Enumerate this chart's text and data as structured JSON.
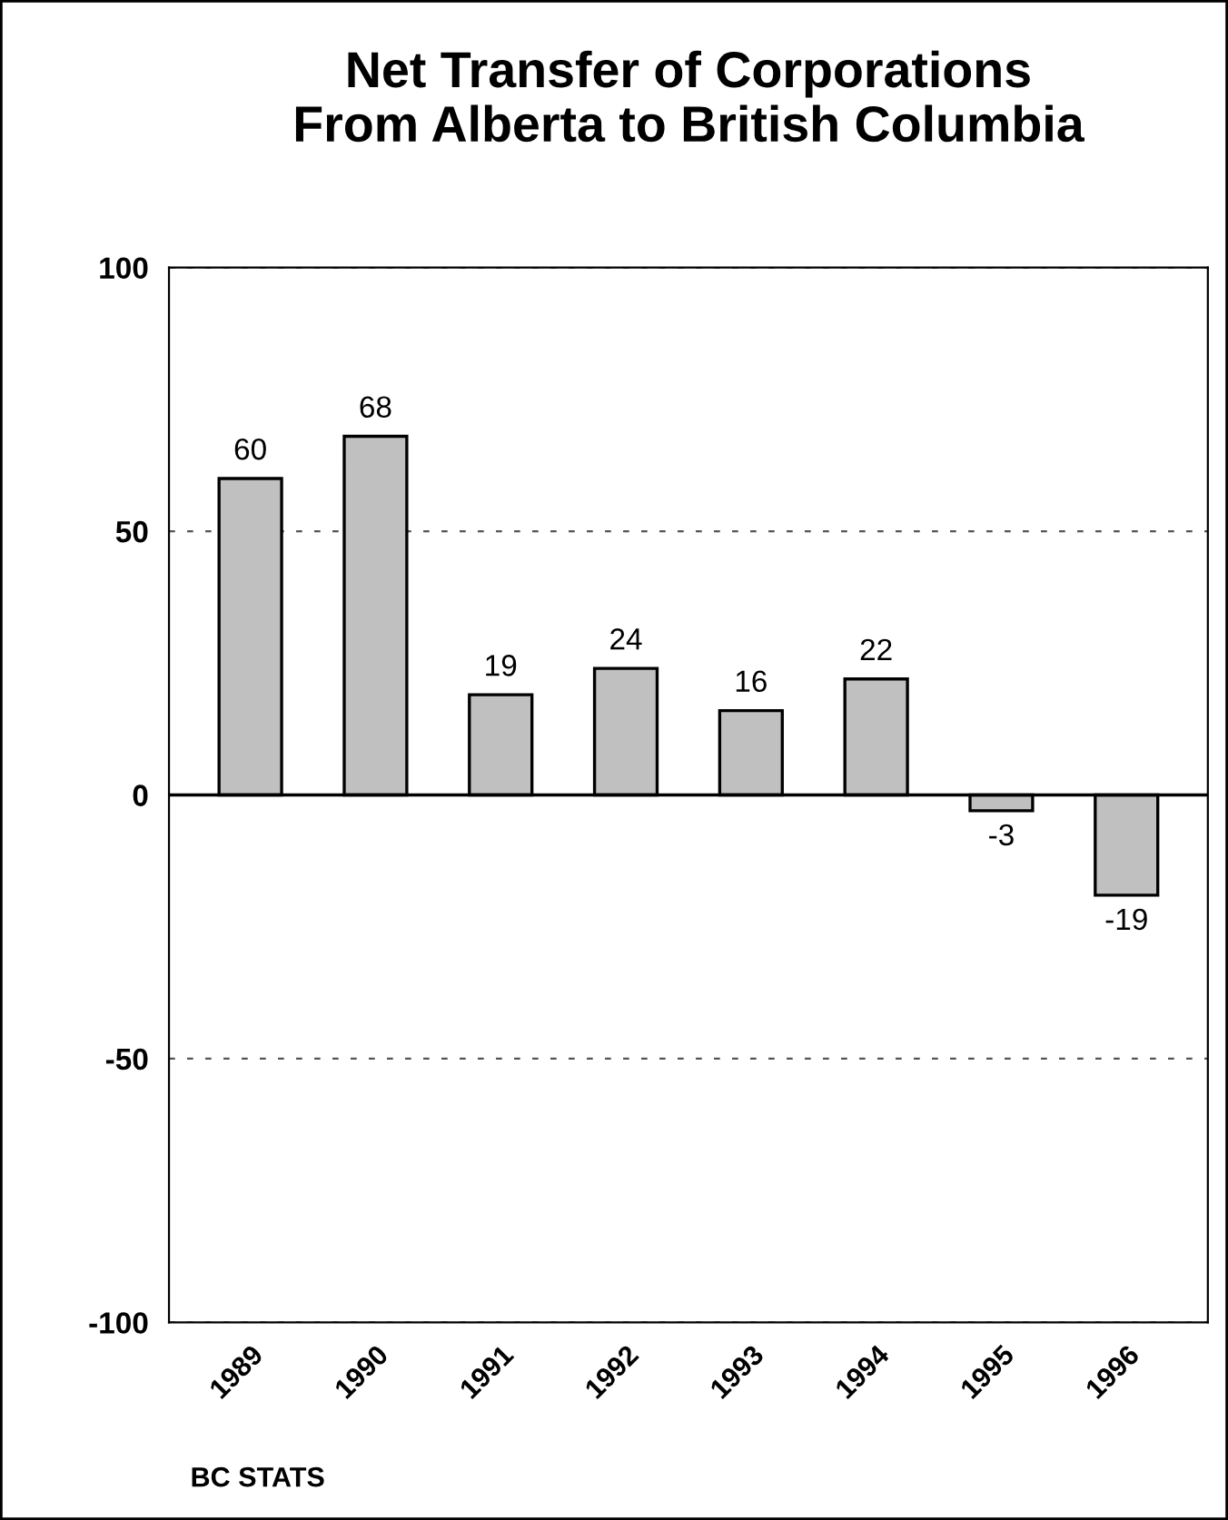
{
  "chart_data": {
    "type": "bar",
    "title": "Net Transfer of Corporations\nFrom Alberta to British Columbia",
    "categories": [
      "1989",
      "1990",
      "1991",
      "1992",
      "1993",
      "1994",
      "1995",
      "1996"
    ],
    "values": [
      60,
      68,
      19,
      24,
      16,
      22,
      -3,
      -19
    ],
    "color": "#c0c0c0",
    "ylim": [
      -100,
      100
    ],
    "yticks": [
      -100,
      -50,
      0,
      50,
      100
    ],
    "grid": "y",
    "data_labels": true,
    "ref_lines": [
      {
        "axis": "y",
        "value": 0,
        "label": null,
        "color": "#000000",
        "line_style": "solid"
      }
    ],
    "annotations": [
      "BC STATS"
    ]
  }
}
